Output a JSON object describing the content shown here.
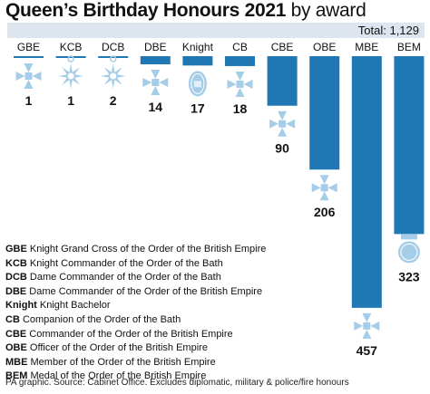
{
  "title": {
    "bold": "Queen’s Birthday Honours 2021",
    "light": "by award"
  },
  "total_label": "Total: 1,129",
  "colors": {
    "bar": "#1f78b4",
    "icon": "#a6cde8",
    "band": "#dde6ee",
    "text": "#111111"
  },
  "chart_data": {
    "type": "bar",
    "title": "Queen’s Birthday Honours 2021 by award",
    "categories": [
      "GBE",
      "KCB",
      "DCB",
      "DBE",
      "Knight",
      "CB",
      "CBE",
      "OBE",
      "MBE",
      "BEM"
    ],
    "values": [
      1,
      1,
      2,
      14,
      17,
      18,
      90,
      206,
      457,
      323
    ],
    "data_labels": [
      "1",
      "1",
      "2",
      "14",
      "17",
      "18",
      "90",
      "206",
      "457",
      "323"
    ],
    "icons": [
      "cross-icon",
      "star-icon",
      "star-icon",
      "cross-icon",
      "oval-badge-icon",
      "cross-icon",
      "cross-icon",
      "cross-icon",
      "cross-icon",
      "round-medal-icon"
    ],
    "orientation": "downward"
  },
  "legend": [
    {
      "abbr": "GBE",
      "text": "Knight Grand Cross of the Order of the British Empire"
    },
    {
      "abbr": "KCB",
      "text": "Knight Commander of the Order of the Bath"
    },
    {
      "abbr": "DCB",
      "text": "Dame Commander of the Order of the Bath"
    },
    {
      "abbr": "DBE",
      "text": "Dame Commander of the Order of the British Empire"
    },
    {
      "abbr": "Knight",
      "text": "Knight Bachelor"
    },
    {
      "abbr": "CB",
      "text": "Companion of the Order of the Bath"
    },
    {
      "abbr": "CBE",
      "text": "Commander of the Order of the British Empire"
    },
    {
      "abbr": "OBE",
      "text": "Officer of the Order of the British Empire"
    },
    {
      "abbr": "MBE",
      "text": "Member of the Order of the British Empire"
    },
    {
      "abbr": "BEM",
      "text": "Medal of the Order of the British Empire"
    }
  ],
  "source": "PA graphic. Source: Cabinet Office. Excludes diplomatic, military & police/fire honours"
}
